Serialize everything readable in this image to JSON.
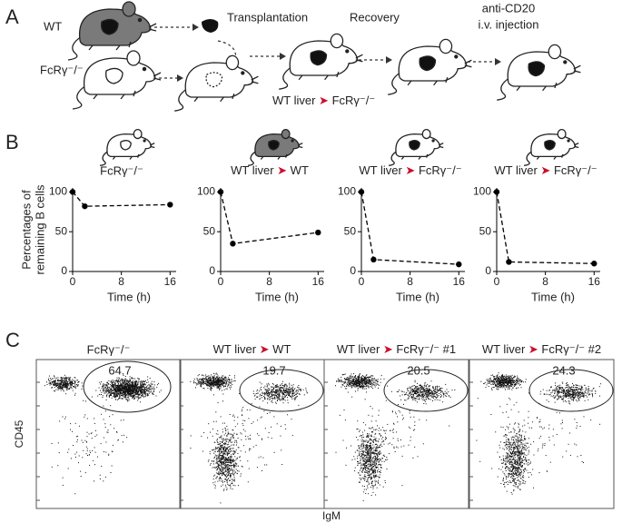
{
  "panel_labels": [
    "A",
    "B",
    "C"
  ],
  "schema": {
    "wt": "WT",
    "fcr": "FcRγ⁻/⁻",
    "transplantation": "Transplantation",
    "recovery": "Recovery",
    "result": "WT liver ➤ FcRγ⁻/⁻",
    "injection": [
      "anti-CD20",
      "i.v. injection"
    ]
  },
  "chart_data": [
    {
      "type": "line",
      "title": "FcRγ⁻/⁻",
      "ylabel": [
        "Percentages of",
        "remaining B cells"
      ],
      "xlabel": "Time (h)",
      "x": [
        0,
        2,
        16
      ],
      "values": [
        100,
        82,
        84
      ],
      "color": "#000000",
      "linestyle": "dashed",
      "xlim": [
        0,
        17
      ],
      "ylim": [
        0,
        105
      ],
      "xticks": [
        0,
        8,
        16
      ],
      "yticks": [
        0,
        50,
        100
      ]
    },
    {
      "type": "line",
      "title": "WT liver ➤ WT",
      "xlabel": "Time (h)",
      "x": [
        0,
        2,
        16
      ],
      "values": [
        100,
        35,
        49
      ],
      "color": "#000000",
      "linestyle": "dashed",
      "xlim": [
        0,
        17
      ],
      "ylim": [
        0,
        105
      ],
      "xticks": [
        0,
        8,
        16
      ],
      "yticks": [
        0,
        50,
        100
      ]
    },
    {
      "type": "line",
      "title": "WT liver ➤ FcRγ⁻/⁻",
      "xlabel": "Time (h)",
      "x": [
        0,
        2,
        16
      ],
      "values": [
        100,
        15,
        9
      ],
      "color": "#000000",
      "linestyle": "dashed",
      "xlim": [
        0,
        17
      ],
      "ylim": [
        0,
        105
      ],
      "xticks": [
        0,
        8,
        16
      ],
      "yticks": [
        0,
        50,
        100
      ]
    },
    {
      "type": "line",
      "title": "WT liver ➤ FcRγ⁻/⁻",
      "xlabel": "Time (h)",
      "x": [
        0,
        2,
        16
      ],
      "values": [
        100,
        12,
        10
      ],
      "color": "#000000",
      "linestyle": "dashed",
      "xlim": [
        0,
        17
      ],
      "ylim": [
        0,
        105
      ],
      "xticks": [
        0,
        8,
        16
      ],
      "yticks": [
        0,
        50,
        100
      ]
    }
  ],
  "flow": {
    "xlabel": "IgM",
    "ylabel": "CD45",
    "panels": [
      {
        "title": "FcRγ⁻/⁻",
        "gate_value": "64.7"
      },
      {
        "title": "WT liver ➤ WT",
        "gate_value": "19.7"
      },
      {
        "title": "WT liver ➤ FcRγ⁻/⁻ #1",
        "gate_value": "20.5"
      },
      {
        "title": "WT liver ➤ FcRγ⁻/⁻ #2",
        "gate_value": "24.3"
      }
    ]
  }
}
